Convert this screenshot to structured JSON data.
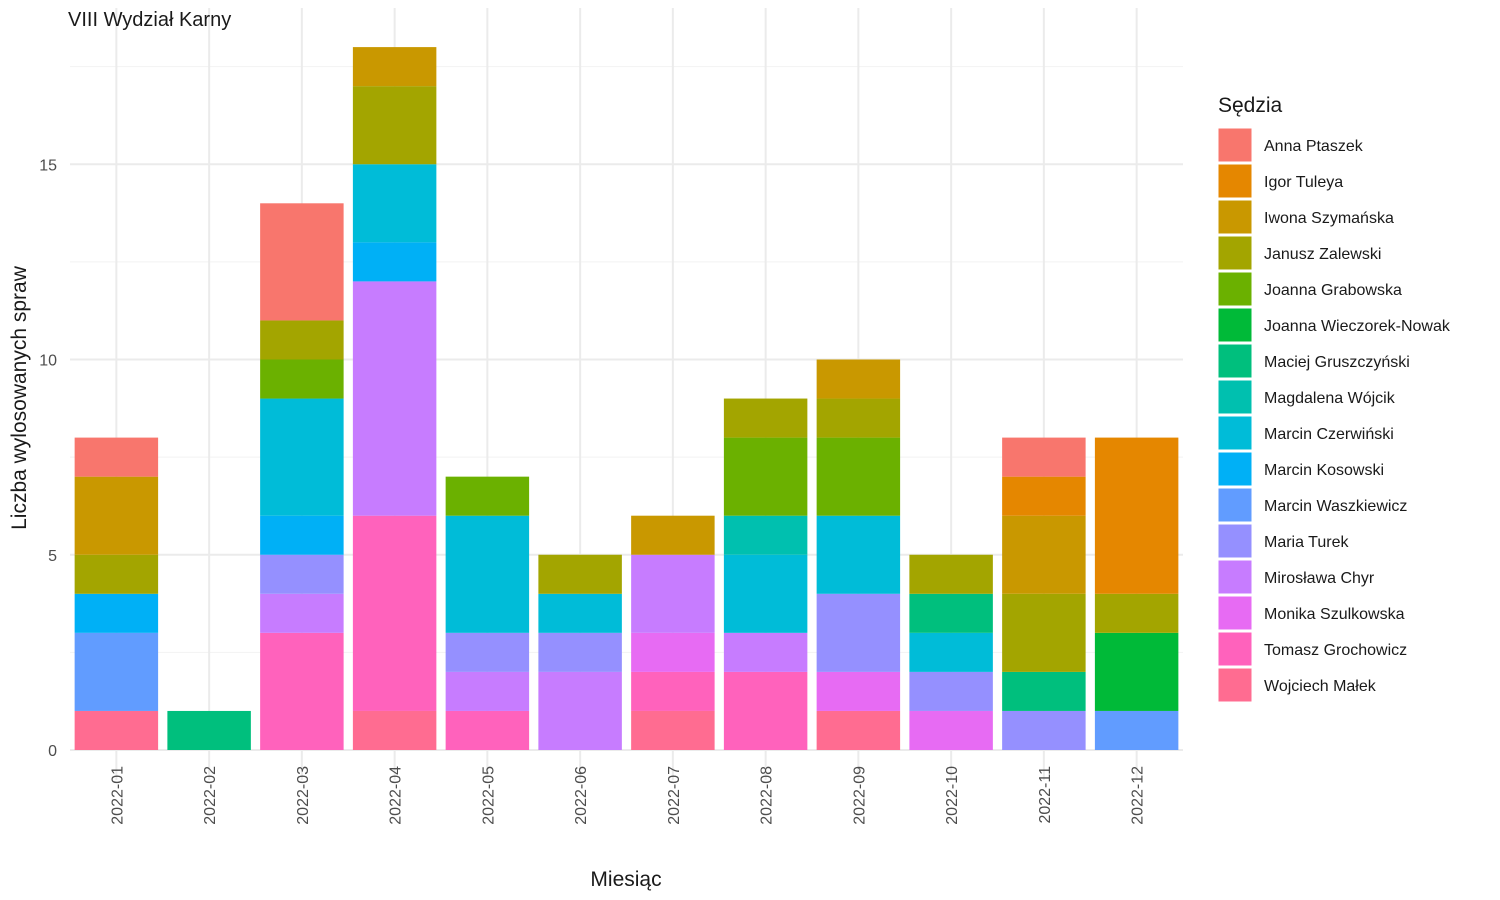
{
  "chart_data": {
    "type": "bar",
    "stacked": true,
    "title": "VIII Wydział Karny",
    "xlabel": "Miesiąc",
    "ylabel": "Liczba wylosowanych spraw",
    "ylim": [
      0,
      18.5
    ],
    "yticks": [
      0,
      5,
      10,
      15
    ],
    "grid": true,
    "legend_title": "Sędzia",
    "legend_position": "right",
    "categories": [
      "2022-01",
      "2022-02",
      "2022-03",
      "2022-04",
      "2022-05",
      "2022-06",
      "2022-07",
      "2022-08",
      "2022-09",
      "2022-10",
      "2022-11",
      "2022-12"
    ],
    "series": [
      {
        "name": "Anna Ptaszek",
        "color": "#F8766D",
        "values": [
          1,
          0,
          3,
          0,
          0,
          0,
          0,
          0,
          0,
          0,
          1,
          0
        ]
      },
      {
        "name": "Igor Tuleya",
        "color": "#E58700",
        "values": [
          0,
          0,
          0,
          0,
          0,
          0,
          0,
          0,
          0,
          0,
          1,
          4
        ]
      },
      {
        "name": "Iwona Szymańska",
        "color": "#C99800",
        "values": [
          2,
          0,
          0,
          1,
          0,
          0,
          1,
          0,
          1,
          0,
          2,
          0
        ]
      },
      {
        "name": "Janusz Zalewski",
        "color": "#A3A500",
        "values": [
          1,
          0,
          1,
          2,
          0,
          1,
          0,
          1,
          1,
          1,
          2,
          1
        ]
      },
      {
        "name": "Joanna Grabowska",
        "color": "#6BB100",
        "values": [
          0,
          0,
          1,
          0,
          1,
          0,
          0,
          2,
          2,
          0,
          0,
          0
        ]
      },
      {
        "name": "Joanna Wieczorek-Nowak",
        "color": "#00BA38",
        "values": [
          0,
          0,
          0,
          0,
          0,
          0,
          0,
          0,
          0,
          0,
          0,
          2
        ]
      },
      {
        "name": "Maciej Gruszczyński",
        "color": "#00BF7D",
        "values": [
          0,
          1,
          0,
          0,
          0,
          0,
          0,
          0,
          0,
          1,
          1,
          0
        ]
      },
      {
        "name": "Magdalena Wójcik",
        "color": "#00C0AF",
        "values": [
          0,
          0,
          0,
          0,
          0,
          0,
          0,
          1,
          0,
          0,
          0,
          0
        ]
      },
      {
        "name": "Marcin Czerwiński",
        "color": "#00BCD8",
        "values": [
          0,
          0,
          3,
          2,
          3,
          1,
          0,
          2,
          2,
          1,
          0,
          0
        ]
      },
      {
        "name": "Marcin Kosowski",
        "color": "#00B0F6",
        "values": [
          1,
          0,
          1,
          1,
          0,
          0,
          0,
          0,
          0,
          0,
          0,
          0
        ]
      },
      {
        "name": "Marcin Waszkiewicz",
        "color": "#619CFF",
        "values": [
          2,
          0,
          0,
          0,
          0,
          0,
          0,
          0,
          0,
          0,
          0,
          1
        ]
      },
      {
        "name": "Maria Turek",
        "color": "#9590FF",
        "values": [
          0,
          0,
          1,
          0,
          1,
          1,
          0,
          0,
          2,
          1,
          1,
          0
        ]
      },
      {
        "name": "Mirosława Chyr",
        "color": "#C77CFF",
        "values": [
          0,
          0,
          1,
          6,
          1,
          2,
          2,
          1,
          0,
          0,
          0,
          0
        ]
      },
      {
        "name": "Monika Szulkowska",
        "color": "#E76BF3",
        "values": [
          0,
          0,
          0,
          0,
          0,
          0,
          1,
          0,
          1,
          1,
          0,
          0
        ]
      },
      {
        "name": "Tomasz Grochowicz",
        "color": "#FF62BC",
        "values": [
          0,
          0,
          3,
          5,
          1,
          0,
          1,
          2,
          0,
          0,
          0,
          0
        ]
      },
      {
        "name": "Wojciech Małek",
        "color": "#FF6C91",
        "values": [
          1,
          0,
          0,
          1,
          0,
          0,
          1,
          0,
          1,
          0,
          0,
          0
        ]
      }
    ]
  }
}
